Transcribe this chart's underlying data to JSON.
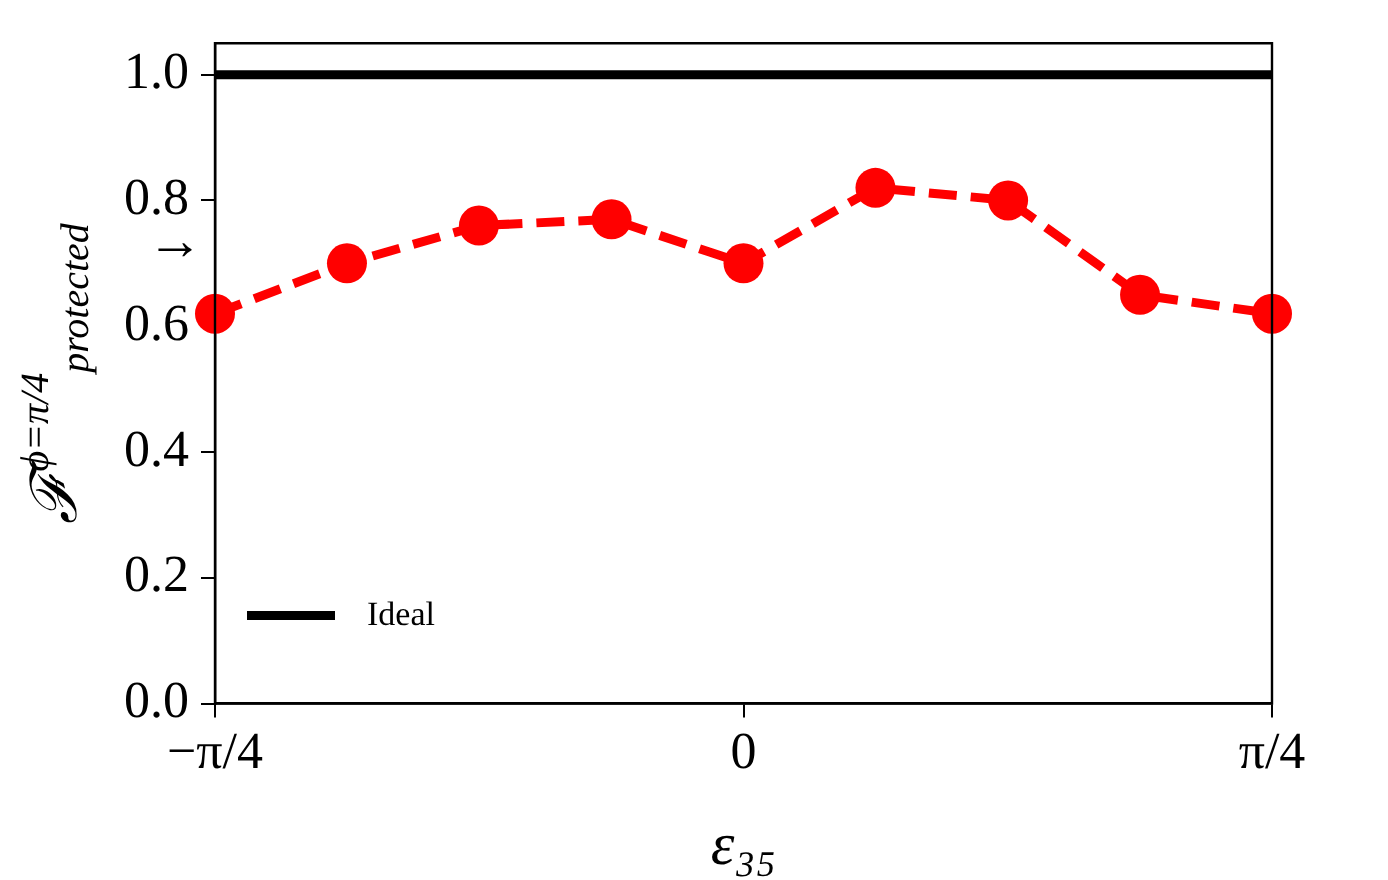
{
  "chart_data": {
    "type": "line",
    "xlabel": "ε₃₅",
    "ylabel": "ℱ$^{ϕ=π/4}$$_{protected}$",
    "xlim": [
      -0.785,
      0.785
    ],
    "xticks": [
      {
        "value": -0.785,
        "label": "−π/4"
      },
      {
        "value": 0,
        "label": "0"
      },
      {
        "value": 0.785,
        "label": "π/4"
      }
    ],
    "ylim": [
      0,
      1.05
    ],
    "yticks": [
      {
        "value": 0,
        "label": "0.0"
      },
      {
        "value": 0.2,
        "label": "0.2"
      },
      {
        "value": 0.4,
        "label": "0.4"
      },
      {
        "value": 0.6,
        "label": "0.6"
      },
      {
        "value": 0.8,
        "label": "0.8"
      },
      {
        "value": 1,
        "label": "1.0"
      }
    ],
    "grid": false,
    "legend": "bottom left",
    "annotations": [
      "→"
    ],
    "series": [
      {
        "name": "Ideal",
        "color": "#000000",
        "marker": "none",
        "line_style": "solid",
        "x": [
          -0.785,
          0.785
        ],
        "values": [
          1,
          1
        ]
      },
      {
        "color": "#ff0000",
        "marker": "circle",
        "line_style": "dashed",
        "x": [
          -0.785,
          -0.589,
          -0.393,
          -0.196,
          0,
          0.196,
          0.393,
          0.589,
          0.785
        ],
        "values": [
          0.62,
          0.7,
          0.76,
          0.77,
          0.7,
          0.82,
          0.8,
          0.65,
          0.62
        ]
      }
    ]
  }
}
